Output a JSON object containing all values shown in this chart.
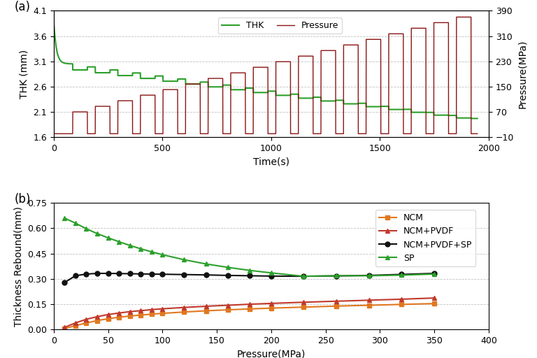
{
  "panel_a": {
    "title": "(a)",
    "xlabel": "Time(s)",
    "ylabel_left": "THK (mm)",
    "ylabel_right": "Pressure(MPa)",
    "xlim": [
      0,
      2000
    ],
    "ylim_left": [
      1.6,
      4.1
    ],
    "ylim_right": [
      -10,
      390
    ],
    "yticks_left": [
      1.6,
      2.1,
      2.6,
      3.1,
      3.6,
      4.1
    ],
    "yticks_right": [
      -10,
      70,
      150,
      230,
      310,
      390
    ],
    "xticks": [
      0,
      500,
      1000,
      1500,
      2000
    ],
    "thk_color": "#2ca02c",
    "pressure_color": "#8b1414",
    "grid_color": "#b0b0b0",
    "legend_labels": [
      "THK",
      "Pressure"
    ]
  },
  "panel_b": {
    "title": "(b)",
    "xlabel": "Pressure(MPa)",
    "ylabel": "Thickness Rebound(mm)",
    "xlim": [
      0,
      400
    ],
    "ylim": [
      0,
      0.75
    ],
    "yticks": [
      0,
      0.15,
      0.3,
      0.45,
      0.6,
      0.75
    ],
    "xticks": [
      0,
      50,
      100,
      150,
      200,
      250,
      300,
      350,
      400
    ],
    "grid_color": "#b0b0b0",
    "series": {
      "NCM": {
        "color": "#e07820",
        "marker": "s",
        "x": [
          10,
          20,
          30,
          40,
          50,
          60,
          70,
          80,
          90,
          100,
          120,
          140,
          160,
          180,
          200,
          230,
          260,
          290,
          320,
          350
        ],
        "y": [
          0.005,
          0.022,
          0.038,
          0.052,
          0.063,
          0.072,
          0.079,
          0.085,
          0.09,
          0.095,
          0.103,
          0.11,
          0.116,
          0.121,
          0.126,
          0.132,
          0.138,
          0.143,
          0.148,
          0.153
        ]
      },
      "NCM+PVDF": {
        "color": "#c0392b",
        "marker": "^",
        "x": [
          10,
          20,
          30,
          40,
          50,
          60,
          70,
          80,
          90,
          100,
          120,
          140,
          160,
          180,
          200,
          230,
          260,
          290,
          320,
          350
        ],
        "y": [
          0.012,
          0.038,
          0.06,
          0.075,
          0.088,
          0.097,
          0.105,
          0.111,
          0.117,
          0.122,
          0.13,
          0.137,
          0.143,
          0.149,
          0.154,
          0.161,
          0.167,
          0.173,
          0.179,
          0.186
        ]
      },
      "NCM+PVDF+SP": {
        "color": "#111111",
        "marker": "o",
        "x": [
          10,
          20,
          30,
          40,
          50,
          60,
          70,
          80,
          90,
          100,
          120,
          140,
          160,
          180,
          200,
          230,
          260,
          290,
          320,
          350
        ],
        "y": [
          0.278,
          0.318,
          0.328,
          0.332,
          0.332,
          0.331,
          0.33,
          0.329,
          0.328,
          0.327,
          0.325,
          0.323,
          0.32,
          0.318,
          0.316,
          0.315,
          0.317,
          0.32,
          0.326,
          0.332
        ]
      },
      "SP": {
        "color": "#2ca02c",
        "marker": "^",
        "x": [
          10,
          20,
          30,
          40,
          50,
          60,
          70,
          80,
          90,
          100,
          120,
          140,
          160,
          180,
          200,
          230,
          260,
          290,
          320,
          350
        ],
        "y": [
          0.66,
          0.63,
          0.597,
          0.568,
          0.543,
          0.52,
          0.498,
          0.478,
          0.46,
          0.443,
          0.413,
          0.388,
          0.368,
          0.35,
          0.335,
          0.315,
          0.318,
          0.318,
          0.322,
          0.328
        ]
      }
    }
  },
  "background_color": "#ffffff",
  "figure_facecolor": "#ffffff"
}
